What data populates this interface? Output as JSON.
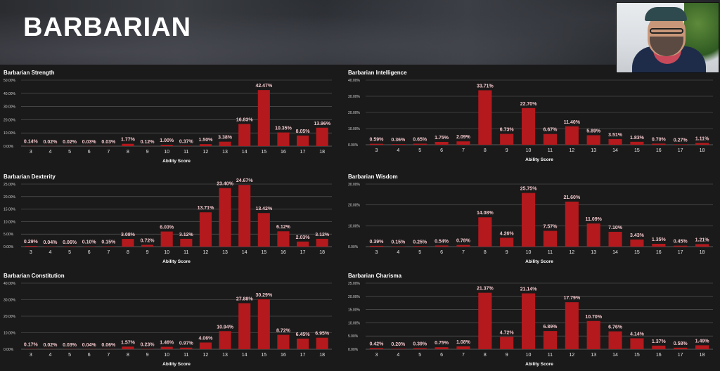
{
  "page": {
    "title": "BARBARIAN"
  },
  "chart_data": [
    {
      "type": "bar",
      "title": "Barbarian Strength",
      "xlabel": "Ability Score",
      "categories": [
        "3",
        "4",
        "5",
        "6",
        "7",
        "8",
        "9",
        "10",
        "11",
        "12",
        "13",
        "14",
        "15",
        "16",
        "17",
        "18"
      ],
      "values": [
        0.14,
        0.02,
        0.02,
        0.03,
        0.03,
        1.77,
        0.12,
        1.0,
        0.37,
        1.5,
        3.38,
        16.83,
        42.47,
        10.35,
        8.05,
        13.96
      ],
      "labels": [
        "0.14%",
        "0.02%",
        "0.02%",
        "0.03%",
        "0.03%",
        "1.77%",
        "0.12%",
        "1.00%",
        "0.37%",
        "1.50%",
        "3.38%",
        "16.83%",
        "42.47%",
        "10.35%",
        "8.05%",
        "13.96%"
      ],
      "yticks": [
        "0.00%",
        "10.00%",
        "20.00%",
        "30.00%",
        "40.00%",
        "50.00%"
      ],
      "ylim": [
        0,
        50
      ],
      "color": "#b3191d",
      "grid": true
    },
    {
      "type": "bar",
      "title": "Barbarian Intelligence",
      "xlabel": "Ability Score",
      "categories": [
        "3",
        "4",
        "5",
        "6",
        "7",
        "8",
        "9",
        "10",
        "11",
        "12",
        "13",
        "14",
        "15",
        "16",
        "17",
        "18"
      ],
      "values": [
        0.59,
        0.36,
        0.65,
        1.75,
        2.09,
        33.71,
        6.73,
        22.7,
        6.67,
        11.4,
        5.89,
        3.51,
        1.83,
        0.7,
        0.27,
        1.11
      ],
      "labels": [
        "0.59%",
        "0.36%",
        "0.65%",
        "1.75%",
        "2.09%",
        "33.71%",
        "6.73%",
        "22.70%",
        "6.67%",
        "11.40%",
        "5.89%",
        "3.51%",
        "1.83%",
        "0.70%",
        "0.27%",
        "1.11%"
      ],
      "yticks": [
        "0.00%",
        "10.00%",
        "20.00%",
        "30.00%",
        "40.00%"
      ],
      "ylim": [
        0,
        40
      ],
      "color": "#b3191d",
      "grid": true
    },
    {
      "type": "bar",
      "title": "Barbarian Dexterity",
      "xlabel": "Ability Score",
      "categories": [
        "3",
        "4",
        "5",
        "6",
        "7",
        "8",
        "9",
        "10",
        "11",
        "12",
        "13",
        "14",
        "15",
        "16",
        "17",
        "18"
      ],
      "values": [
        0.29,
        0.04,
        0.06,
        0.1,
        0.15,
        3.08,
        0.72,
        6.03,
        3.12,
        13.71,
        23.4,
        24.67,
        13.42,
        6.12,
        2.03,
        3.12
      ],
      "labels": [
        "0.29%",
        "0.04%",
        "0.06%",
        "0.10%",
        "0.15%",
        "3.08%",
        "0.72%",
        "6.03%",
        "3.12%",
        "13.71%",
        "23.40%",
        "24.67%",
        "13.42%",
        "6.12%",
        "2.03%",
        "3.12%"
      ],
      "yticks": [
        "0.00%",
        "5.00%",
        "10.00%",
        "15.00%",
        "20.00%",
        "25.00%"
      ],
      "ylim": [
        0,
        25
      ],
      "color": "#b3191d",
      "grid": true
    },
    {
      "type": "bar",
      "title": "Barbarian Wisdom",
      "xlabel": "Ability Score",
      "categories": [
        "3",
        "4",
        "5",
        "6",
        "7",
        "8",
        "9",
        "10",
        "11",
        "12",
        "13",
        "14",
        "15",
        "16",
        "17",
        "18"
      ],
      "values": [
        0.39,
        0.15,
        0.25,
        0.54,
        0.78,
        14.08,
        4.26,
        25.75,
        7.57,
        21.6,
        11.09,
        7.1,
        3.43,
        1.35,
        0.45,
        1.21
      ],
      "labels": [
        "0.39%",
        "0.15%",
        "0.25%",
        "0.54%",
        "0.78%",
        "14.08%",
        "4.26%",
        "25.75%",
        "7.57%",
        "21.60%",
        "11.09%",
        "7.10%",
        "3.43%",
        "1.35%",
        "0.45%",
        "1.21%"
      ],
      "yticks": [
        "0.00%",
        "10.00%",
        "20.00%",
        "30.00%"
      ],
      "ylim": [
        0,
        30
      ],
      "color": "#b3191d",
      "grid": true
    },
    {
      "type": "bar",
      "title": "Barbarian Constitution",
      "xlabel": "Ability Score",
      "categories": [
        "3",
        "4",
        "5",
        "6",
        "7",
        "8",
        "9",
        "10",
        "11",
        "12",
        "13",
        "14",
        "15",
        "16",
        "17",
        "18"
      ],
      "values": [
        0.17,
        0.02,
        0.03,
        0.04,
        0.06,
        1.57,
        0.23,
        1.46,
        0.97,
        4.06,
        10.94,
        27.88,
        30.29,
        8.72,
        6.45,
        6.95
      ],
      "labels": [
        "0.17%",
        "0.02%",
        "0.03%",
        "0.04%",
        "0.06%",
        "1.57%",
        "0.23%",
        "1.46%",
        "0.97%",
        "4.06%",
        "10.94%",
        "27.88%",
        "30.29%",
        "8.72%",
        "6.45%",
        "6.95%"
      ],
      "yticks": [
        "0.00%",
        "10.00%",
        "20.00%",
        "30.00%",
        "40.00%"
      ],
      "ylim": [
        0,
        40
      ],
      "color": "#b3191d",
      "grid": true
    },
    {
      "type": "bar",
      "title": "Barbarian Charisma",
      "xlabel": "Ability Score",
      "categories": [
        "3",
        "4",
        "5",
        "6",
        "7",
        "8",
        "9",
        "10",
        "11",
        "12",
        "13",
        "14",
        "15",
        "16",
        "17",
        "18"
      ],
      "values": [
        0.42,
        0.2,
        0.39,
        0.75,
        1.08,
        21.37,
        4.72,
        21.14,
        6.89,
        17.79,
        10.7,
        6.76,
        4.14,
        1.37,
        0.58,
        1.49
      ],
      "labels": [
        "0.42%",
        "0.20%",
        "0.39%",
        "0.75%",
        "1.08%",
        "21.37%",
        "4.72%",
        "21.14%",
        "6.89%",
        "17.79%",
        "10.70%",
        "6.76%",
        "4.14%",
        "1.37%",
        "0.58%",
        "1.49%"
      ],
      "yticks": [
        "0.00%",
        "5.00%",
        "10.00%",
        "15.00%",
        "20.00%",
        "25.00%"
      ],
      "ylim": [
        0,
        25
      ],
      "color": "#b3191d",
      "grid": true
    }
  ]
}
